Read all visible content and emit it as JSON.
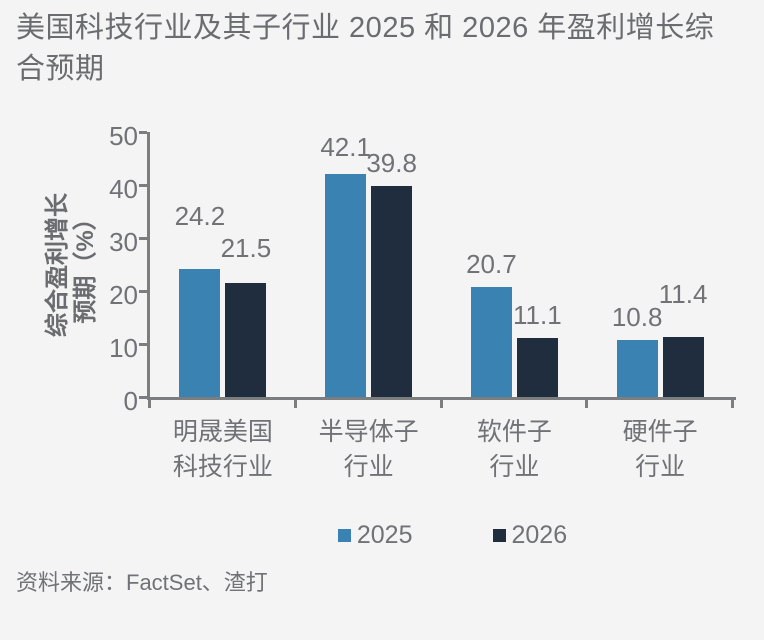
{
  "title": "美国科技行业及其子行业 2025 和 2026 年盈利增长综合预期",
  "source": "资料来源：FactSet、渣打",
  "colors": {
    "background": "#f4f4f5",
    "title_text": "#6b6c6f",
    "label_text": "#717276",
    "axis_line": "#7c7d7f",
    "bar_2025": "#3a82b1",
    "bar_2026": "#1f2d3e"
  },
  "chart_data": {
    "type": "bar",
    "categories": [
      "明晟美国\n科技行业",
      "半导体子\n行业",
      "软件子\n行业",
      "硬件子\n行业"
    ],
    "series": [
      {
        "name": "2025",
        "color": "#3a82b1",
        "values": [
          24.2,
          42.1,
          20.7,
          10.8
        ]
      },
      {
        "name": "2026",
        "color": "#1f2d3e",
        "values": [
          21.5,
          39.8,
          11.1,
          11.4
        ]
      }
    ],
    "value_labels": [
      [
        "24.2",
        "21.5"
      ],
      [
        "42.1",
        "39.8"
      ],
      [
        "20.7",
        "11.1"
      ],
      [
        "10.8",
        "11.4"
      ]
    ],
    "ylabel": "综合盈利增长\n预期（%）",
    "ylim": [
      0,
      50
    ],
    "yticks": [
      0,
      10,
      20,
      30,
      40,
      50
    ],
    "grid": false,
    "legend_position": "bottom"
  }
}
